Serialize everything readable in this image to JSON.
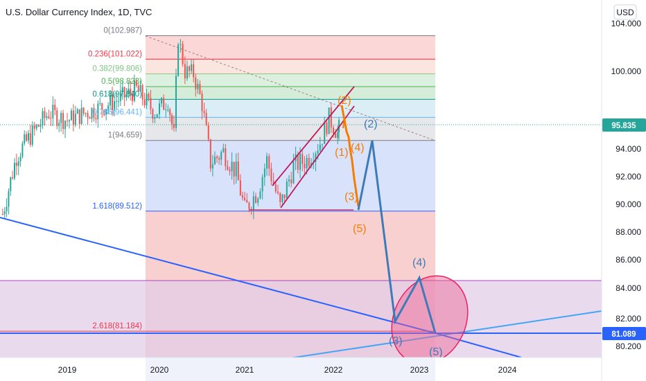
{
  "header": {
    "title": "U.S. Dollar Currency Index, 1D, TVC",
    "currency_button": "USD"
  },
  "price_axis": {
    "ticks": [
      "104.000",
      "100.000",
      "94.000",
      "92.000",
      "90.000",
      "88.000",
      "86.000",
      "84.000",
      "82.000",
      "80.200"
    ],
    "current_price": "95.835",
    "target_price": "81.089",
    "current_color": "#26a69a",
    "target_color": "#2962ff"
  },
  "time_axis": {
    "ticks": [
      "2019",
      "2020",
      "2021",
      "2022",
      "2023",
      "2024"
    ]
  },
  "fib_levels": [
    {
      "label": "0(102.987)",
      "value": 102.987,
      "color": "#787b86"
    },
    {
      "label": "0.236(101.022)",
      "value": 101.022,
      "color": "#f23645"
    },
    {
      "label": "0.382(99.806)",
      "value": 99.806,
      "color": "#81c784"
    },
    {
      "label": "0.5(98.823)",
      "value": 98.823,
      "color": "#4caf50"
    },
    {
      "label": "0.618(97.840)",
      "value": 97.84,
      "color": "#089981"
    },
    {
      "label": "0.786(96.441)",
      "value": 96.441,
      "color": "#64b5f6"
    },
    {
      "label": "1(94.659)",
      "value": 94.659,
      "color": "#787b86"
    },
    {
      "label": "1.618(89.512)",
      "value": 89.512,
      "color": "#2962ff"
    },
    {
      "label": "2.618(81.184)",
      "value": 81.184,
      "color": "#f23645"
    }
  ],
  "wave_labels": {
    "orange": [
      "(2)",
      "(1)",
      "(4)",
      "(3)",
      "(5)"
    ],
    "blue": [
      "(2)",
      "(4)",
      "(3)",
      "(5)"
    ]
  },
  "chart_data": {
    "type": "line",
    "title": "U.S. Dollar Currency Index, 1D, TVC",
    "xlabel": "",
    "ylabel": "",
    "ylim": [
      80.0,
      104.5
    ],
    "xlim": [
      2018.3,
      2025.0
    ],
    "series": [
      {
        "values": [
          {
            "x": 2018.3,
            "y": 89.3
          },
          {
            "x": 2018.45,
            "y": 93.5
          },
          {
            "x": 2018.6,
            "y": 95.0
          },
          {
            "x": 2018.8,
            "y": 96.8
          },
          {
            "x": 2019.0,
            "y": 96.2
          },
          {
            "x": 2019.2,
            "y": 96.8
          },
          {
            "x": 2019.4,
            "y": 97.3
          },
          {
            "x": 2019.6,
            "y": 98.0
          },
          {
            "x": 2019.75,
            "y": 98.6
          },
          {
            "x": 2019.95,
            "y": 96.8
          },
          {
            "x": 2020.1,
            "y": 97.8
          },
          {
            "x": 2020.17,
            "y": 95.0
          },
          {
            "x": 2020.22,
            "y": 102.9
          },
          {
            "x": 2020.3,
            "y": 100.0
          },
          {
            "x": 2020.4,
            "y": 99.8
          },
          {
            "x": 2020.5,
            "y": 97.5
          },
          {
            "x": 2020.6,
            "y": 93.0
          },
          {
            "x": 2020.75,
            "y": 93.8
          },
          {
            "x": 2020.9,
            "y": 92.3
          },
          {
            "x": 2021.0,
            "y": 89.6
          },
          {
            "x": 2021.15,
            "y": 91.0
          },
          {
            "x": 2021.25,
            "y": 93.2
          },
          {
            "x": 2021.4,
            "y": 89.8
          },
          {
            "x": 2021.55,
            "y": 92.8
          },
          {
            "x": 2021.7,
            "y": 93.2
          },
          {
            "x": 2021.85,
            "y": 94.5
          },
          {
            "x": 2021.95,
            "y": 96.4
          },
          {
            "x": 2022.05,
            "y": 95.2
          },
          {
            "x": 2022.08,
            "y": 95.84
          }
        ]
      }
    ]
  }
}
